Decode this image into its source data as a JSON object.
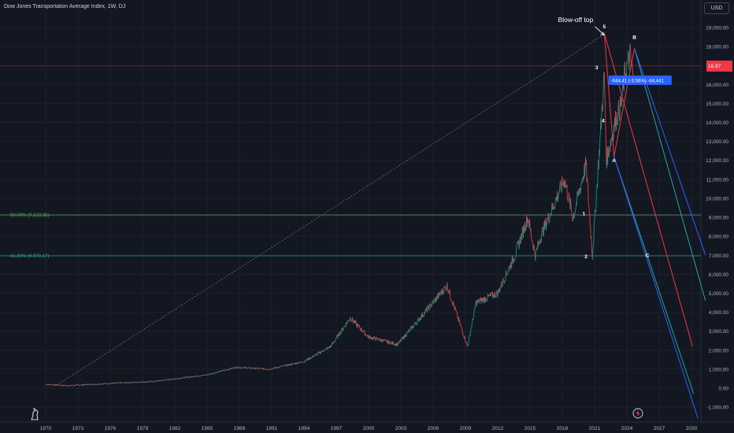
{
  "title": "Dow Jones Transportation Average Index, 1W, DJ",
  "currency_button": "USD",
  "chart_data": {
    "type": "line",
    "series": [
      {
        "name": "",
        "type": "ohlc-weekly",
        "x": [
          1970,
          1972,
          1975,
          1980,
          1985,
          1987.7,
          1990.8,
          1994,
          1996.5,
          1998.3,
          2000,
          2002.7,
          2004.5,
          2007.3,
          2009.2,
          2010,
          2012,
          2013.6,
          2014.8,
          2015.5,
          2016,
          2018.2,
          2019,
          2020.2,
          2020.8,
          2021.5,
          2021.9,
          2022.1,
          2022.9,
          2023.5,
          2023.8,
          2024.3,
          2024.6
        ],
        "values": [
          200,
          130,
          220,
          350,
          700,
          1100,
          1000,
          1400,
          2200,
          3700,
          2700,
          2300,
          3500,
          5400,
          2200,
          4500,
          5000,
          7000,
          9000,
          7000,
          8000,
          11000,
          9000,
          11800,
          7000,
          13000,
          16500,
          12000,
          14000,
          15000,
          16500,
          17500,
          16300
        ]
      }
    ],
    "wave_labels": [
      {
        "text": "1",
        "x": 2020.0,
        "y": 9100
      },
      {
        "text": "2",
        "x": 2020.2,
        "y": 6850
      },
      {
        "text": "3",
        "x": 2021.2,
        "y": 16800
      },
      {
        "text": "4",
        "x": 2021.8,
        "y": 14000
      },
      {
        "text": "5",
        "x": 2021.9,
        "y": 18950
      },
      {
        "text": "A",
        "x": 2022.8,
        "y": 11900
      },
      {
        "text": "B",
        "x": 2024.7,
        "y": 18400
      },
      {
        "text": "C",
        "x": 2025.9,
        "y": 6900
      }
    ],
    "annotations": [
      {
        "text": "Blow-off top",
        "x": 2017.6,
        "y": 19300,
        "arrow_to": {
          "x": 2021.9,
          "y": 18600
        }
      }
    ],
    "fib_levels": [
      {
        "label": "50.00% (9,123.35)",
        "value": 9123.35,
        "color": "#4caf50"
      },
      {
        "label": "61.80% (6,970.17)",
        "value": 6970.17,
        "color": "#26a69a"
      }
    ],
    "measure_label": "-644.41 (-3.56%) -64,441",
    "last_price_label": "16,97",
    "ylim": [
      -1800,
      20300
    ],
    "xlim": [
      1968.7,
      2031.3
    ],
    "x_ticks": [
      "1970",
      "1973",
      "1976",
      "1979",
      "1982",
      "1985",
      "1988",
      "1991",
      "1994",
      "1997",
      "2000",
      "2003",
      "2006",
      "2009",
      "2012",
      "2015",
      "2018",
      "2021",
      "2024",
      "2027",
      "2030"
    ],
    "y_ticks": [
      "19,000.00",
      "18,000.00",
      "17,000.00",
      "16,000.00",
      "15,000.00",
      "14,000.00",
      "13,000.00",
      "12,000.00",
      "11,000.00",
      "10,000.00",
      "9,000.00",
      "8,000.00",
      "7,000.00",
      "6,000.00",
      "5,000.00",
      "4,000.00",
      "3,000.00",
      "2,000.00",
      "1,000.00",
      "0.00",
      "-1,000.00"
    ],
    "grid": true,
    "legend": "none"
  }
}
